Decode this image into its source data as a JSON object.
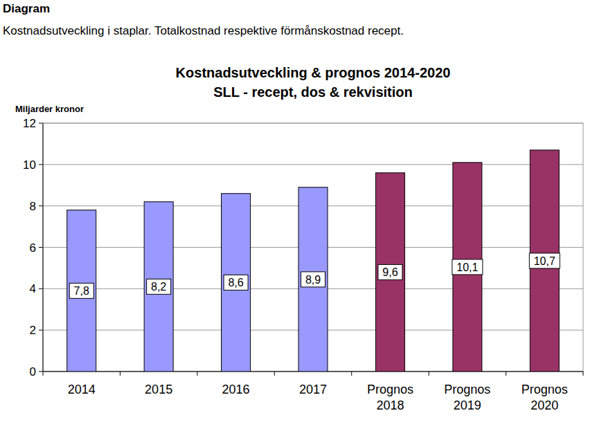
{
  "header": {
    "title": "Diagram",
    "text": "Kostnadsutveckling i staplar. Totalkostnad respektive förmånskostnad recept."
  },
  "chart_data": {
    "type": "bar",
    "title": "Kostnadsutveckling & prognos 2014-2020",
    "subtitle": "SLL - recept, dos & rekvisition",
    "y_label": "Miljarder kronor",
    "categories": [
      "2014",
      "2015",
      "2016",
      "2017",
      "Prognos 2018",
      "Prognos 2019",
      "Prognos 2020"
    ],
    "values": [
      7.8,
      8.2,
      8.6,
      8.9,
      9.6,
      10.1,
      10.7
    ],
    "value_labels": [
      "7,8",
      "8,2",
      "8,6",
      "8,9",
      "9,6",
      "10,1",
      "10,7"
    ],
    "colors": [
      "#9999ff",
      "#9999ff",
      "#9999ff",
      "#9999ff",
      "#993366",
      "#993366",
      "#993366"
    ],
    "ylim": [
      0,
      12
    ],
    "yticks": [
      0,
      2,
      4,
      6,
      8,
      10,
      12
    ],
    "grid": true,
    "data_labels": true
  }
}
